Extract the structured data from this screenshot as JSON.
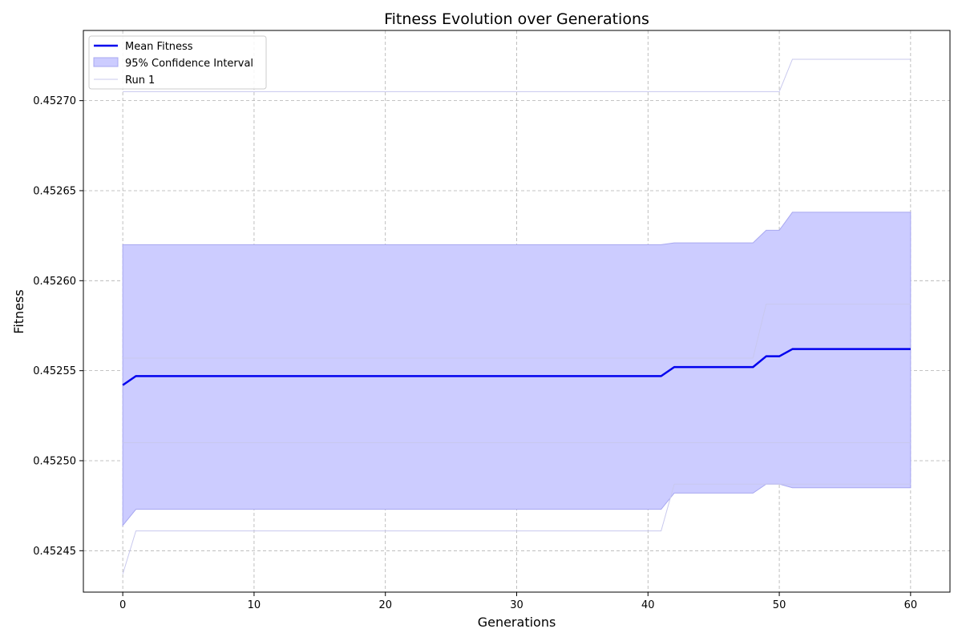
{
  "chart_data": {
    "type": "line",
    "title": "Fitness Evolution over Generations",
    "xlabel": "Generations",
    "ylabel": "Fitness",
    "xlim": [
      -3,
      63
    ],
    "ylim": [
      0.452427,
      0.452739
    ],
    "xticks": [
      0,
      10,
      20,
      30,
      40,
      50,
      60
    ],
    "xtick_labels": [
      "0",
      "10",
      "20",
      "30",
      "40",
      "50",
      "60"
    ],
    "yticks": [
      0.45245,
      0.4525,
      0.45255,
      0.4526,
      0.45265,
      0.4527
    ],
    "ytick_labels": [
      "0.45245",
      "0.45250",
      "0.45255",
      "0.45260",
      "0.45265",
      "0.45270"
    ],
    "grid": true,
    "legend_position": "top-left",
    "colors": {
      "mean": "#0000ee",
      "ci_fill": "#ccccff",
      "ci_edge": "#a8a8f0",
      "run": "#c8c8ee"
    },
    "legend": [
      {
        "label": "Mean Fitness",
        "kind": "line"
      },
      {
        "label": "95% Confidence Interval",
        "kind": "patch"
      },
      {
        "label": "Run 1",
        "kind": "thin-line"
      }
    ],
    "series": [
      {
        "name": "Mean Fitness",
        "role": "mean",
        "points": [
          [
            0,
            0.452542
          ],
          [
            1,
            0.452547
          ],
          [
            41,
            0.452547
          ],
          [
            42,
            0.452552
          ],
          [
            48,
            0.452552
          ],
          [
            49,
            0.452558
          ],
          [
            50,
            0.452558
          ],
          [
            51,
            0.452562
          ],
          [
            60,
            0.452562
          ]
        ]
      },
      {
        "name": "95% Confidence Interval",
        "role": "ci",
        "upper": [
          [
            0,
            0.45262
          ],
          [
            1,
            0.45262
          ],
          [
            41,
            0.45262
          ],
          [
            42,
            0.452621
          ],
          [
            48,
            0.452621
          ],
          [
            49,
            0.452628
          ],
          [
            50,
            0.452628
          ],
          [
            51,
            0.452638
          ],
          [
            60,
            0.452638
          ]
        ],
        "lower": [
          [
            0,
            0.452464
          ],
          [
            1,
            0.452473
          ],
          [
            41,
            0.452473
          ],
          [
            42,
            0.452482
          ],
          [
            48,
            0.452482
          ],
          [
            49,
            0.452487
          ],
          [
            50,
            0.452487
          ],
          [
            51,
            0.452485
          ],
          [
            60,
            0.452485
          ]
        ]
      },
      {
        "name": "Run 1",
        "role": "run",
        "points": [
          [
            0,
            0.452437
          ],
          [
            1,
            0.452461
          ],
          [
            41,
            0.452461
          ],
          [
            42,
            0.452487
          ],
          [
            48,
            0.452487
          ],
          [
            49,
            0.452487
          ],
          [
            50,
            0.452487
          ],
          [
            51,
            0.452487
          ],
          [
            60,
            0.452487
          ]
        ]
      },
      {
        "role": "run",
        "points": [
          [
            0,
            0.452705
          ],
          [
            50,
            0.452705
          ],
          [
            51,
            0.452723
          ],
          [
            60,
            0.452723
          ]
        ]
      },
      {
        "role": "run",
        "points": [
          [
            0,
            0.452557
          ],
          [
            48,
            0.452557
          ],
          [
            49,
            0.452587
          ],
          [
            60,
            0.452587
          ]
        ]
      },
      {
        "role": "run",
        "points": [
          [
            0,
            0.45251
          ],
          [
            60,
            0.45251
          ]
        ]
      }
    ]
  }
}
